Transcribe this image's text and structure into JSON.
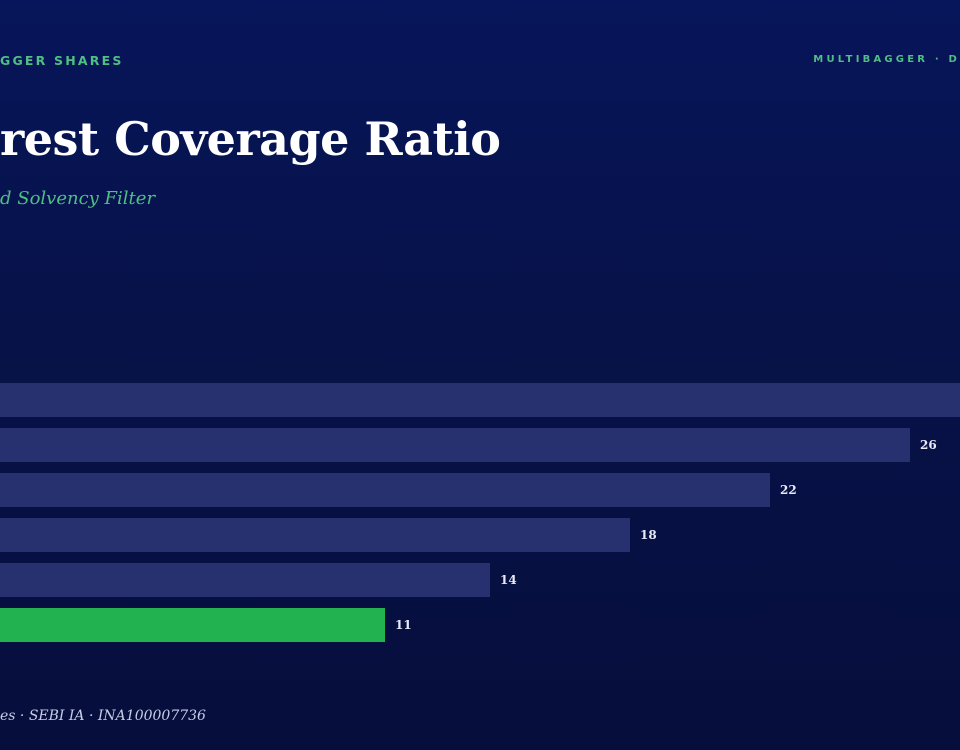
{
  "header": {
    "brand_left": "GGER SHARES",
    "brand_right": "MULTIBAGGER · D"
  },
  "title": "rest Coverage Ratio",
  "subtitle": "d Solvency Filter",
  "footer": "es · SEBI IA · INA100007736",
  "colors": {
    "bar_default": "#28316f",
    "bar_highlight": "#22b24f",
    "label": "#e8eaf6",
    "accent": "#4fbf83"
  },
  "chart_data": {
    "type": "bar",
    "orientation": "horizontal",
    "values": [
      30,
      26,
      22,
      18,
      14,
      11
    ],
    "value_labels": [
      "",
      "26",
      "22",
      "18",
      "14",
      "11"
    ],
    "highlight_index": 5,
    "xlim": [
      0,
      30
    ]
  }
}
